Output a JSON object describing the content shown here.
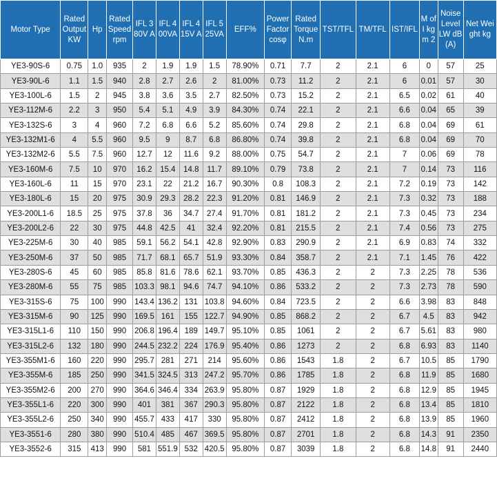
{
  "headers": [
    "Motor Type",
    "Rated Output KW",
    "Hp",
    "Rated Speed rpm",
    "IFL 380V A",
    "IFL 400VA",
    "IFL 415V A",
    "IFL 525VA",
    "EFF%",
    "Power Factor cosφ",
    "Rated Torque N.m",
    "TST/TFL",
    "TM/TFL",
    "IST/IFL",
    "M of I kgm 2",
    "Noise Level LW dB (A)",
    "Net Weight kg"
  ],
  "rows": [
    [
      "YE3-90S-6",
      "0.75",
      "1.0",
      "935",
      "2",
      "1.9",
      "1.9",
      "1.5",
      "78.90%",
      "0.71",
      "7.7",
      "2",
      "2.1",
      "6",
      "0",
      "57",
      "25"
    ],
    [
      "YE3-90L-6",
      "1.1",
      "1.5",
      "940",
      "2.8",
      "2.7",
      "2.6",
      "2",
      "81.00%",
      "0.73",
      "11.2",
      "2",
      "2.1",
      "6",
      "0.01",
      "57",
      "30"
    ],
    [
      "YE3-100L-6",
      "1.5",
      "2",
      "945",
      "3.8",
      "3.6",
      "3.5",
      "2.7",
      "82.50%",
      "0.73",
      "15.2",
      "2",
      "2.1",
      "6.5",
      "0.02",
      "61",
      "40"
    ],
    [
      "YE3-112M-6",
      "2.2",
      "3",
      "950",
      "5.4",
      "5.1",
      "4.9",
      "3.9",
      "84.30%",
      "0.74",
      "22.1",
      "2",
      "2.1",
      "6.6",
      "0.04",
      "65",
      "39"
    ],
    [
      "YE3-132S-6",
      "3",
      "4",
      "960",
      "7.2",
      "6.8",
      "6.6",
      "5.2",
      "85.60%",
      "0.74",
      "29.8",
      "2",
      "2.1",
      "6.8",
      "0.04",
      "69",
      "61"
    ],
    [
      "YE3-132M1-6",
      "4",
      "5.5",
      "960",
      "9.5",
      "9",
      "8.7",
      "6.8",
      "86.80%",
      "0.74",
      "39.8",
      "2",
      "2.1",
      "6.8",
      "0.04",
      "69",
      "70"
    ],
    [
      "YE3-132M2-6",
      "5.5",
      "7.5",
      "960",
      "12.7",
      "12",
      "11.6",
      "9.2",
      "88.00%",
      "0.75",
      "54.7",
      "2",
      "2.1",
      "7",
      "0.06",
      "69",
      "78"
    ],
    [
      "YE3-160M-6",
      "7.5",
      "10",
      "970",
      "16.2",
      "15.4",
      "14.8",
      "11.7",
      "89.10%",
      "0.79",
      "73.8",
      "2",
      "2.1",
      "7",
      "0.14",
      "73",
      "116"
    ],
    [
      "YE3-160L-6",
      "11",
      "15",
      "970",
      "23.1",
      "22",
      "21.2",
      "16.7",
      "90.30%",
      "0.8",
      "108.3",
      "2",
      "2.1",
      "7.2",
      "0.19",
      "73",
      "142"
    ],
    [
      "YE3-180L-6",
      "15",
      "20",
      "975",
      "30.9",
      "29.3",
      "28.2",
      "22.3",
      "91.20%",
      "0.81",
      "146.9",
      "2",
      "2.1",
      "7.3",
      "0.32",
      "73",
      "188"
    ],
    [
      "YE3-200L1-6",
      "18.5",
      "25",
      "975",
      "37.8",
      "36",
      "34.7",
      "27.4",
      "91.70%",
      "0.81",
      "181.2",
      "2",
      "2.1",
      "7.3",
      "0.45",
      "73",
      "234"
    ],
    [
      "YE3-200L2-6",
      "22",
      "30",
      "975",
      "44.8",
      "42.5",
      "41",
      "32.4",
      "92.20%",
      "0.81",
      "215.5",
      "2",
      "2.1",
      "7.4",
      "0.56",
      "73",
      "275"
    ],
    [
      "YE3-225M-6",
      "30",
      "40",
      "985",
      "59.1",
      "56.2",
      "54.1",
      "42.8",
      "92.90%",
      "0.83",
      "290.9",
      "2",
      "2.1",
      "6.9",
      "0.83",
      "74",
      "332"
    ],
    [
      "YE3-250M-6",
      "37",
      "50",
      "985",
      "71.7",
      "68.1",
      "65.7",
      "51.9",
      "93.30%",
      "0.84",
      "358.7",
      "2",
      "2.1",
      "7.1",
      "1.45",
      "76",
      "422"
    ],
    [
      "YE3-280S-6",
      "45",
      "60",
      "985",
      "85.8",
      "81.6",
      "78.6",
      "62.1",
      "93.70%",
      "0.85",
      "436.3",
      "2",
      "2",
      "7.3",
      "2.25",
      "78",
      "536"
    ],
    [
      "YE3-280M-6",
      "55",
      "75",
      "985",
      "103.3",
      "98.1",
      "94.6",
      "74.7",
      "94.10%",
      "0.86",
      "533.2",
      "2",
      "2",
      "7.3",
      "2.73",
      "78",
      "590"
    ],
    [
      "YE3-315S-6",
      "75",
      "100",
      "990",
      "143.4",
      "136.2",
      "131",
      "103.8",
      "94.60%",
      "0.84",
      "723.5",
      "2",
      "2",
      "6.6",
      "3.98",
      "83",
      "848"
    ],
    [
      "YE3-315M-6",
      "90",
      "125",
      "990",
      "169.5",
      "161",
      "155",
      "122.7",
      "94.90%",
      "0.85",
      "868.2",
      "2",
      "2",
      "6.7",
      "4.5",
      "83",
      "942"
    ],
    [
      "YE3-315L1-6",
      "110",
      "150",
      "990",
      "206.8",
      "196.4",
      "189",
      "149.7",
      "95.10%",
      "0.85",
      "1061",
      "2",
      "2",
      "6.7",
      "5.61",
      "83",
      "980"
    ],
    [
      "YE3-315L2-6",
      "132",
      "180",
      "990",
      "244.5",
      "232.2",
      "224",
      "176.9",
      "95.40%",
      "0.86",
      "1273",
      "2",
      "2",
      "6.8",
      "6.93",
      "83",
      "1140"
    ],
    [
      "YE3-355M1-6",
      "160",
      "220",
      "990",
      "295.7",
      "281",
      "271",
      "214",
      "95.60%",
      "0.86",
      "1543",
      "1.8",
      "2",
      "6.7",
      "10.5",
      "85",
      "1790"
    ],
    [
      "YE3-355M-6",
      "185",
      "250",
      "990",
      "341.5",
      "324.5",
      "313",
      "247.2",
      "95.70%",
      "0.86",
      "1785",
      "1.8",
      "2",
      "6.8",
      "11.9",
      "85",
      "1680"
    ],
    [
      "YE3-355M2-6",
      "200",
      "270",
      "990",
      "364.6",
      "346.4",
      "334",
      "263.9",
      "95.80%",
      "0.87",
      "1929",
      "1.8",
      "2",
      "6.8",
      "12.9",
      "85",
      "1945"
    ],
    [
      "YE3-355L1-6",
      "220",
      "300",
      "990",
      "401",
      "381",
      "367",
      "290.3",
      "95.80%",
      "0.87",
      "2122",
      "1.8",
      "2",
      "6.8",
      "13.4",
      "85",
      "1810"
    ],
    [
      "YE3-355L2-6",
      "250",
      "340",
      "990",
      "455.7",
      "433",
      "417",
      "330",
      "95.80%",
      "0.87",
      "2412",
      "1.8",
      "2",
      "6.8",
      "13.9",
      "85",
      "1960"
    ],
    [
      "YE3-3551-6",
      "280",
      "380",
      "990",
      "510.4",
      "485",
      "467",
      "369.5",
      "95.80%",
      "0.87",
      "2701",
      "1.8",
      "2",
      "6.8",
      "14.3",
      "91",
      "2350"
    ],
    [
      "YE3-3552-6",
      "315",
      "413",
      "990",
      "581",
      "551.9",
      "532",
      "420.5",
      "95.80%",
      "0.87",
      "3039",
      "1.8",
      "2",
      "6.8",
      "14.8",
      "91",
      "2440"
    ]
  ]
}
